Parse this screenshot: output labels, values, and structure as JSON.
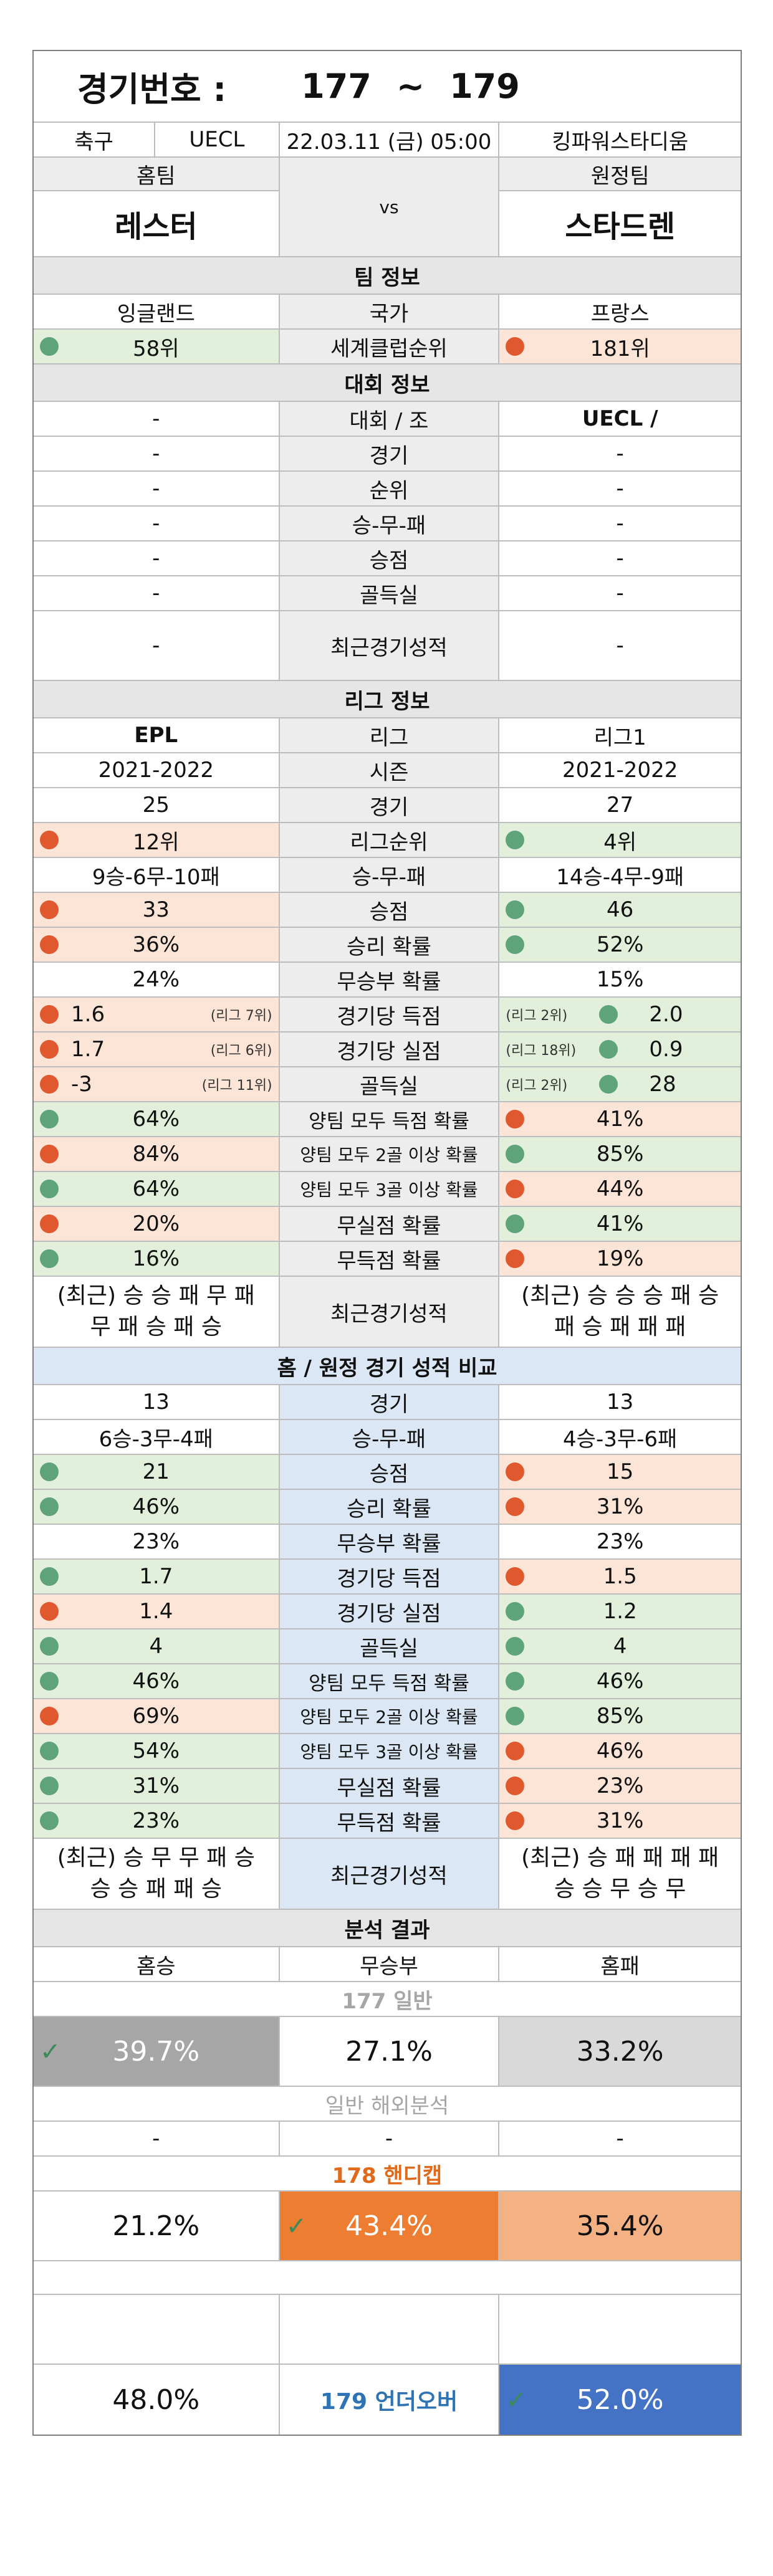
{
  "header": {
    "label": "경기번호 :",
    "from": "177",
    "sep": "~",
    "to": "179"
  },
  "match": {
    "sport": "축구",
    "league": "UECL",
    "datetime": "22.03.11 (금) 05:00",
    "venue": "킹파워스타디움"
  },
  "teams": {
    "home_label": "홈팀",
    "away_label": "원정팀",
    "home": "레스터",
    "vs": "vs",
    "away": "스타드렌"
  },
  "team_info": {
    "title": "팀 정보",
    "rows": [
      {
        "home": "잉글랜드",
        "label": "국가",
        "away": "프랑스"
      },
      {
        "home": "58위",
        "label": "세계클럽순위",
        "away": "181위"
      }
    ]
  },
  "tournament": {
    "title": "대회 정보",
    "rows": [
      {
        "home": "-",
        "label": "대회 / 조",
        "away": "UECL /"
      },
      {
        "home": "-",
        "label": "경기",
        "away": "-"
      },
      {
        "home": "-",
        "label": "순위",
        "away": "-"
      },
      {
        "home": "-",
        "label": "승-무-패",
        "away": "-"
      },
      {
        "home": "-",
        "label": "승점",
        "away": "-"
      },
      {
        "home": "-",
        "label": "골득실",
        "away": "-"
      },
      {
        "home": "-",
        "label": "최근경기성적",
        "away": "-"
      }
    ]
  },
  "league": {
    "title": "리그 정보",
    "rows": [
      {
        "home": "EPL",
        "label": "리그",
        "away": "리그1"
      },
      {
        "home": "2021-2022",
        "label": "시즌",
        "away": "2021-2022"
      },
      {
        "home": "25",
        "label": "경기",
        "away": "27"
      },
      {
        "home": "12위",
        "label": "리그순위",
        "away": "4위"
      },
      {
        "home": "9승-6무-10패",
        "label": "승-무-패",
        "away": "14승-4무-9패"
      },
      {
        "home": "33",
        "label": "승점",
        "away": "46"
      },
      {
        "home": "36%",
        "label": "승리 확률",
        "away": "52%"
      },
      {
        "home": "24%",
        "label": "무승부 확률",
        "away": "15%"
      },
      {
        "home": "1.6",
        "home_rank": "(리그 7위)",
        "label": "경기당 득점",
        "away": "2.0",
        "away_rank": "(리그 2위)"
      },
      {
        "home": "1.7",
        "home_rank": "(리그 6위)",
        "label": "경기당 실점",
        "away": "0.9",
        "away_rank": "(리그 18위)"
      },
      {
        "home": "-3",
        "home_rank": "(리그 11위)",
        "label": "골득실",
        "away": "28",
        "away_rank": "(리그 2위)"
      },
      {
        "home": "64%",
        "label": "양팀 모두 득점 확률",
        "away": "41%"
      },
      {
        "home": "84%",
        "label": "양팀 모두 2골 이상 확률",
        "away": "85%"
      },
      {
        "home": "64%",
        "label": "양팀 모두 3골 이상 확률",
        "away": "44%"
      },
      {
        "home": "20%",
        "label": "무실점 확률",
        "away": "41%"
      },
      {
        "home": "16%",
        "label": "무득점 확률",
        "away": "19%"
      }
    ],
    "recent": {
      "home_1": "(최근) 승 승 패 무 패",
      "home_2": "무 패 승 패 승",
      "label": "최근경기성적",
      "away_1": "(최근) 승 승 승 패 승",
      "away_2": "패 승 패 패 패"
    }
  },
  "homeaway": {
    "title": "홈 / 원정 경기 성적 비교",
    "rows": [
      {
        "home": "13",
        "label": "경기",
        "away": "13"
      },
      {
        "home": "6승-3무-4패",
        "label": "승-무-패",
        "away": "4승-3무-6패"
      },
      {
        "home": "21",
        "label": "승점",
        "away": "15"
      },
      {
        "home": "46%",
        "label": "승리 확률",
        "away": "31%"
      },
      {
        "home": "23%",
        "label": "무승부 확률",
        "away": "23%"
      },
      {
        "home": "1.7",
        "label": "경기당 득점",
        "away": "1.5"
      },
      {
        "home": "1.4",
        "label": "경기당 실점",
        "away": "1.2"
      },
      {
        "home": "4",
        "label": "골득실",
        "away": "4"
      },
      {
        "home": "46%",
        "label": "양팀 모두 득점 확률",
        "away": "46%"
      },
      {
        "home": "69%",
        "label": "양팀 모두 2골 이상 확률",
        "away": "85%"
      },
      {
        "home": "54%",
        "label": "양팀 모두 3골 이상 확률",
        "away": "46%"
      },
      {
        "home": "31%",
        "label": "무실점 확률",
        "away": "23%"
      },
      {
        "home": "23%",
        "label": "무득점 확률",
        "away": "31%"
      }
    ],
    "recent": {
      "home_1": "(최근) 승 무 무 패 승",
      "home_2": "승 승 패 패 승",
      "label": "최근경기성적",
      "away_1": "(최근) 승 패 패 패 패",
      "away_2": "승 승 무 승 무"
    }
  },
  "analysis": {
    "title": "분석 결과",
    "home_win": "홈승",
    "draw": "무승부",
    "home_loss": "홈패",
    "g177": "177 일반",
    "p177_home": "39.7%",
    "p177_draw": "27.1%",
    "p177_away": "33.2%",
    "overseas": "일반 해외분석",
    "ov_home": "-",
    "ov_draw": "-",
    "ov_away": "-",
    "g178": "178 핸디캡",
    "p178_home": "21.2%",
    "p178_draw": "43.4%",
    "p178_away": "35.4%",
    "p179_under": "48.0%",
    "g179": "179 언더오버",
    "p179_over": "52.0%"
  },
  "colors": {
    "green": "#e2efda",
    "salmon": "#fce4d6",
    "blue_header": "#dbe7f4",
    "grey_dark": "#a6a6a6",
    "orange": "#ed7d31",
    "orange_light": "#f4b183",
    "blue_strong": "#4472c4",
    "green_dot": "#5fa37a",
    "orange_dot": "#e0582e"
  }
}
